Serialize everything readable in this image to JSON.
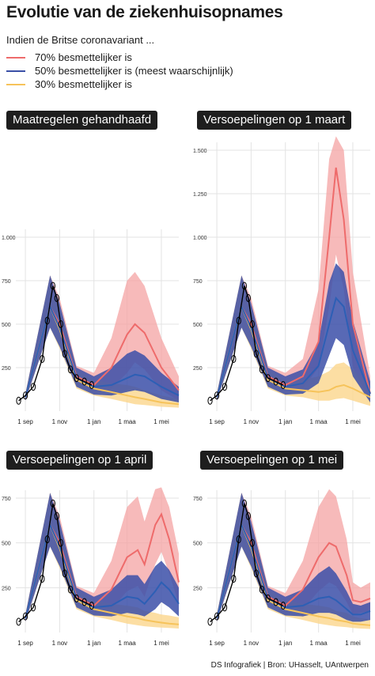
{
  "title": "Evolutie van de ziekenhuisopnames",
  "subtitle": "Indien de Britse coronavariant ...",
  "legend": [
    {
      "label": "70% besmettelijker is",
      "color": "#ee6b6b"
    },
    {
      "label": "50% besmettelijker is (meest waarschijnlijk)",
      "color": "#3a4fa6"
    },
    {
      "label": "30% besmettelijker is",
      "color": "#f6c35a"
    }
  ],
  "colors": {
    "red_band": "#f4a3a3",
    "red_line": "#ee6b6b",
    "blue_band": "#3b4fa8",
    "blue_line": "#2d5fb5",
    "yellow_band": "#fbd68c",
    "yellow_line": "#f6c35a",
    "observed": "#000000"
  },
  "footer": "DS Infografiek | Bron: UHasselt, UAntwerpen",
  "chart_data": [
    {
      "type": "line",
      "title": "Maatregelen gehandhaafd",
      "x_ticks": [
        "1 sep",
        "1 nov",
        "1 jan",
        "1 maa",
        "1 mei"
      ],
      "y_ticks": [
        "250",
        "500",
        "750",
        "1.000"
      ],
      "ylim": [
        0,
        1000
      ],
      "xlim": [
        "2020-08-15",
        "2021-06-01"
      ],
      "grid": true,
      "observed": {
        "x": [
          "2020-08-20",
          "2020-09-01",
          "2020-09-15",
          "2020-10-01",
          "2020-10-10",
          "2020-10-20",
          "2020-10-27",
          "2020-11-03",
          "2020-11-10",
          "2020-11-20",
          "2020-12-01",
          "2020-12-15",
          "2020-12-28"
        ],
        "y": [
          60,
          90,
          140,
          300,
          520,
          720,
          650,
          500,
          330,
          240,
          190,
          170,
          150
        ]
      },
      "series": [
        {
          "name": "70% besmettelijker is",
          "x": [
            "2020-09-01",
            "2020-10-15",
            "2020-11-01",
            "2020-12-01",
            "2021-01-01",
            "2021-02-01",
            "2021-03-01",
            "2021-03-15",
            "2021-04-01",
            "2021-05-01",
            "2021-06-01"
          ],
          "y": [
            80,
            600,
            500,
            200,
            150,
            250,
            440,
            500,
            450,
            250,
            120
          ],
          "upper": [
            100,
            780,
            650,
            260,
            220,
            420,
            750,
            800,
            720,
            420,
            200
          ],
          "lower": [
            60,
            480,
            380,
            150,
            100,
            130,
            220,
            280,
            240,
            120,
            60
          ]
        },
        {
          "name": "50% besmettelijker is (meest waarschijnlijk)",
          "x": [
            "2020-09-01",
            "2020-10-15",
            "2020-11-01",
            "2020-12-01",
            "2021-01-01",
            "2021-02-01",
            "2021-03-01",
            "2021-03-15",
            "2021-04-01",
            "2021-05-01",
            "2021-06-01"
          ],
          "y": [
            80,
            600,
            480,
            190,
            140,
            150,
            190,
            210,
            200,
            140,
            90
          ],
          "upper": [
            100,
            780,
            620,
            250,
            200,
            250,
            330,
            350,
            320,
            220,
            140
          ],
          "lower": [
            60,
            480,
            370,
            140,
            95,
            90,
            110,
            120,
            110,
            70,
            50
          ]
        },
        {
          "name": "30% besmettelijker is",
          "x": [
            "2020-09-01",
            "2020-10-15",
            "2020-11-01",
            "2020-12-01",
            "2021-01-01",
            "2021-02-01",
            "2021-03-01",
            "2021-03-15",
            "2021-04-01",
            "2021-05-01",
            "2021-06-01"
          ],
          "y": [
            80,
            600,
            470,
            180,
            130,
            110,
            90,
            80,
            70,
            50,
            40
          ],
          "upper": [
            100,
            780,
            610,
            240,
            180,
            160,
            150,
            140,
            120,
            90,
            70
          ],
          "lower": [
            60,
            480,
            360,
            130,
            90,
            70,
            50,
            40,
            35,
            25,
            20
          ]
        }
      ]
    },
    {
      "type": "line",
      "title": "Versoepelingen op 1 maart",
      "x_ticks": [
        "1 sep",
        "1 nov",
        "1 jan",
        "1 maa",
        "1 mei"
      ],
      "y_ticks": [
        "250",
        "500",
        "750",
        "1.000",
        "1.250",
        "1.500"
      ],
      "ylim": [
        0,
        1500
      ],
      "xlim": [
        "2020-08-15",
        "2021-06-01"
      ],
      "grid": true,
      "observed": {
        "x": [
          "2020-08-20",
          "2020-09-01",
          "2020-09-15",
          "2020-10-01",
          "2020-10-10",
          "2020-10-20",
          "2020-10-27",
          "2020-11-03",
          "2020-11-10",
          "2020-11-20",
          "2020-12-01",
          "2020-12-15",
          "2020-12-28"
        ],
        "y": [
          60,
          90,
          140,
          300,
          520,
          720,
          650,
          500,
          330,
          240,
          190,
          170,
          150
        ]
      },
      "series": [
        {
          "name": "70% besmettelijker is",
          "x": [
            "2020-09-01",
            "2020-10-15",
            "2020-11-01",
            "2020-12-01",
            "2021-01-01",
            "2021-02-01",
            "2021-03-01",
            "2021-03-20",
            "2021-04-01",
            "2021-04-15",
            "2021-05-01",
            "2021-06-01"
          ],
          "y": [
            80,
            600,
            500,
            200,
            150,
            200,
            400,
            1000,
            1400,
            1100,
            500,
            100
          ],
          "upper": [
            100,
            780,
            650,
            260,
            220,
            300,
            700,
            1450,
            1580,
            1500,
            800,
            200
          ],
          "lower": [
            60,
            480,
            380,
            150,
            100,
            130,
            250,
            600,
            900,
            700,
            250,
            50
          ]
        },
        {
          "name": "50% besmettelijker is (meest waarschijnlijk)",
          "x": [
            "2020-09-01",
            "2020-10-15",
            "2020-11-01",
            "2020-12-01",
            "2021-01-01",
            "2021-02-01",
            "2021-03-01",
            "2021-03-20",
            "2021-04-01",
            "2021-04-15",
            "2021-05-01",
            "2021-06-01"
          ],
          "y": [
            80,
            600,
            480,
            190,
            140,
            160,
            260,
            500,
            650,
            600,
            350,
            100
          ],
          "upper": [
            100,
            780,
            620,
            250,
            200,
            240,
            400,
            740,
            850,
            800,
            520,
            170
          ],
          "lower": [
            60,
            480,
            370,
            140,
            95,
            100,
            160,
            320,
            420,
            380,
            200,
            50
          ]
        },
        {
          "name": "30% besmettelijker is",
          "x": [
            "2020-09-01",
            "2020-10-15",
            "2020-11-01",
            "2020-12-01",
            "2021-01-01",
            "2021-02-01",
            "2021-03-01",
            "2021-03-20",
            "2021-04-01",
            "2021-04-15",
            "2021-05-01",
            "2021-06-01"
          ],
          "y": [
            80,
            600,
            470,
            180,
            130,
            120,
            110,
            120,
            140,
            150,
            130,
            80
          ],
          "upper": [
            100,
            780,
            610,
            240,
            180,
            180,
            200,
            230,
            270,
            280,
            240,
            150
          ],
          "lower": [
            60,
            480,
            360,
            130,
            90,
            80,
            60,
            60,
            70,
            75,
            60,
            30
          ]
        }
      ]
    },
    {
      "type": "line",
      "title": "Versoepelingen op 1 april",
      "x_ticks": [
        "1 sep",
        "1 nov",
        "1 jan",
        "1 maa",
        "1 mei"
      ],
      "y_ticks": [
        "250",
        "500",
        "750"
      ],
      "ylim": [
        0,
        750
      ],
      "xlim": [
        "2020-08-15",
        "2021-06-01"
      ],
      "grid": true,
      "observed": {
        "x": [
          "2020-08-20",
          "2020-09-01",
          "2020-09-15",
          "2020-10-01",
          "2020-10-10",
          "2020-10-20",
          "2020-10-27",
          "2020-11-03",
          "2020-11-10",
          "2020-11-20",
          "2020-12-01",
          "2020-12-15",
          "2020-12-28"
        ],
        "y": [
          60,
          90,
          140,
          300,
          520,
          720,
          650,
          500,
          330,
          240,
          190,
          170,
          150
        ]
      },
      "series": [
        {
          "name": "70% besmettelijker is",
          "x": [
            "2020-09-01",
            "2020-10-15",
            "2020-11-01",
            "2020-12-01",
            "2021-01-01",
            "2021-02-01",
            "2021-03-01",
            "2021-03-20",
            "2021-04-01",
            "2021-04-20",
            "2021-05-01",
            "2021-05-15",
            "2021-06-01"
          ],
          "y": [
            80,
            600,
            500,
            200,
            150,
            240,
            420,
            460,
            380,
            600,
            660,
            520,
            280
          ],
          "upper": [
            100,
            780,
            650,
            260,
            220,
            400,
            700,
            760,
            620,
            800,
            810,
            700,
            440
          ],
          "lower": [
            60,
            480,
            380,
            150,
            100,
            130,
            230,
            260,
            200,
            380,
            450,
            330,
            160
          ]
        },
        {
          "name": "50% besmettelijker is (meest waarschijnlijk)",
          "x": [
            "2020-09-01",
            "2020-10-15",
            "2020-11-01",
            "2020-12-01",
            "2021-01-01",
            "2021-02-01",
            "2021-03-01",
            "2021-03-20",
            "2021-04-01",
            "2021-04-20",
            "2021-05-01",
            "2021-05-15",
            "2021-06-01"
          ],
          "y": [
            80,
            600,
            480,
            190,
            140,
            150,
            200,
            190,
            160,
            230,
            280,
            240,
            160
          ],
          "upper": [
            100,
            780,
            620,
            250,
            200,
            240,
            320,
            320,
            270,
            370,
            400,
            350,
            250
          ],
          "lower": [
            60,
            480,
            370,
            140,
            95,
            90,
            110,
            100,
            90,
            130,
            170,
            140,
            90
          ]
        },
        {
          "name": "30% besmettelijker is",
          "x": [
            "2020-09-01",
            "2020-10-15",
            "2020-11-01",
            "2020-12-01",
            "2021-01-01",
            "2021-02-01",
            "2021-03-01",
            "2021-03-20",
            "2021-04-01",
            "2021-04-20",
            "2021-05-01",
            "2021-05-15",
            "2021-06-01"
          ],
          "y": [
            80,
            600,
            470,
            180,
            130,
            110,
            90,
            80,
            70,
            60,
            55,
            50,
            45
          ],
          "upper": [
            100,
            780,
            610,
            240,
            180,
            160,
            150,
            140,
            120,
            110,
            100,
            95,
            85
          ],
          "lower": [
            60,
            480,
            360,
            130,
            90,
            70,
            50,
            40,
            35,
            30,
            28,
            25,
            22
          ]
        }
      ]
    },
    {
      "type": "line",
      "title": "Versoepelingen op 1 mei",
      "x_ticks": [
        "1 sep",
        "1 nov",
        "1 jan",
        "1 maa",
        "1 mei"
      ],
      "y_ticks": [
        "250",
        "500",
        "750"
      ],
      "ylim": [
        0,
        750
      ],
      "xlim": [
        "2020-08-15",
        "2021-06-01"
      ],
      "grid": true,
      "observed": {
        "x": [
          "2020-08-20",
          "2020-09-01",
          "2020-09-15",
          "2020-10-01",
          "2020-10-10",
          "2020-10-20",
          "2020-10-27",
          "2020-11-03",
          "2020-11-10",
          "2020-11-20",
          "2020-12-01",
          "2020-12-15",
          "2020-12-28"
        ],
        "y": [
          60,
          90,
          140,
          300,
          520,
          720,
          650,
          500,
          330,
          240,
          190,
          170,
          150
        ]
      },
      "series": [
        {
          "name": "70% besmettelijker is",
          "x": [
            "2020-09-01",
            "2020-10-15",
            "2020-11-01",
            "2020-12-01",
            "2021-01-01",
            "2021-02-01",
            "2021-03-01",
            "2021-03-20",
            "2021-04-01",
            "2021-04-20",
            "2021-05-01",
            "2021-05-15",
            "2021-06-01"
          ],
          "y": [
            80,
            600,
            500,
            200,
            150,
            240,
            420,
            500,
            480,
            320,
            180,
            170,
            190
          ],
          "upper": [
            100,
            780,
            650,
            260,
            220,
            400,
            700,
            800,
            760,
            520,
            280,
            250,
            280
          ],
          "lower": [
            60,
            480,
            380,
            150,
            100,
            130,
            230,
            280,
            260,
            170,
            100,
            110,
            120
          ]
        },
        {
          "name": "50% besmettelijker is (meest waarschijnlijk)",
          "x": [
            "2020-09-01",
            "2020-10-15",
            "2020-11-01",
            "2020-12-01",
            "2021-01-01",
            "2021-02-01",
            "2021-03-01",
            "2021-03-20",
            "2021-04-01",
            "2021-04-20",
            "2021-05-01",
            "2021-05-15",
            "2021-06-01"
          ],
          "y": [
            80,
            600,
            480,
            190,
            140,
            150,
            190,
            200,
            180,
            130,
            100,
            100,
            120
          ],
          "upper": [
            100,
            780,
            620,
            250,
            200,
            240,
            330,
            370,
            330,
            230,
            160,
            150,
            170
          ],
          "lower": [
            60,
            480,
            370,
            140,
            95,
            90,
            110,
            110,
            100,
            70,
            60,
            60,
            70
          ]
        },
        {
          "name": "30% besmettelijker is",
          "x": [
            "2020-09-01",
            "2020-10-15",
            "2020-11-01",
            "2020-12-01",
            "2021-01-01",
            "2021-02-01",
            "2021-03-01",
            "2021-03-20",
            "2021-04-01",
            "2021-04-20",
            "2021-05-01",
            "2021-05-15",
            "2021-06-01"
          ],
          "y": [
            80,
            600,
            470,
            180,
            130,
            110,
            90,
            80,
            70,
            60,
            50,
            45,
            40
          ],
          "upper": [
            100,
            780,
            610,
            240,
            180,
            160,
            150,
            140,
            120,
            110,
            90,
            80,
            75
          ],
          "lower": [
            60,
            480,
            360,
            130,
            90,
            70,
            50,
            40,
            35,
            30,
            25,
            22,
            20
          ]
        }
      ]
    }
  ]
}
